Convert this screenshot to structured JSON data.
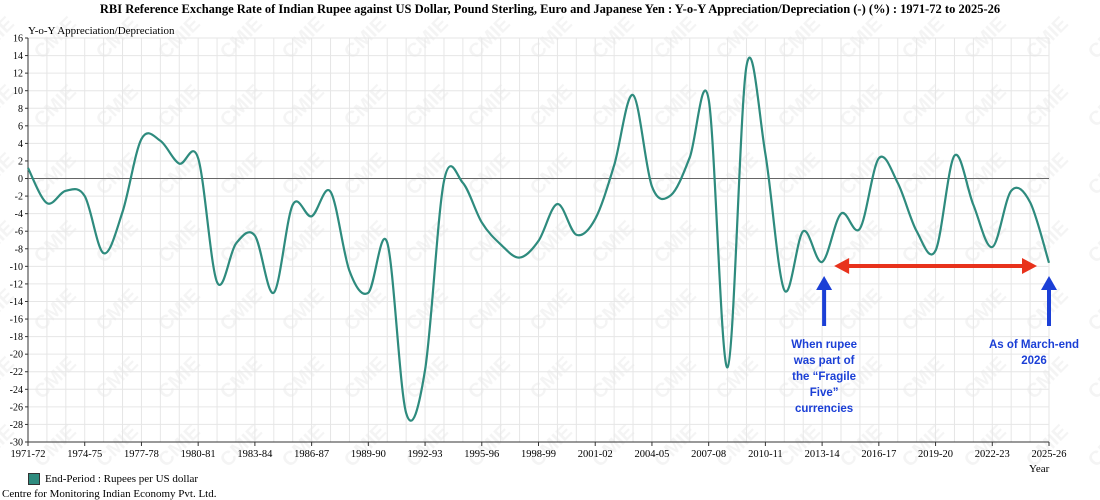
{
  "title": "RBI Reference Exchange Rate of Indian Rupee against US Dollar, Pound Sterling, Euro and Japanese Yen : Y-o-Y Appreciation/Depreciation (-) (%) : 1971-72 to 2025-26",
  "footer": "Centre for Monitoring Indian Economy Pvt. Ltd.",
  "watermark": "CMIE",
  "colors": {
    "series": "#2e8b7e",
    "annotation": "#1b3fd6",
    "range_arrow": "#e8321c",
    "zero_line": "#666666",
    "grid": "#e6e6e6"
  },
  "annotations": [
    {
      "id": "fragile-five",
      "text": "When rupee\nwas part of\nthe “Fragile\nFive”\ncurrencies",
      "category": "2013-14"
    },
    {
      "id": "march-end",
      "text": "As of March-end\n2026",
      "category": "2025-26"
    }
  ],
  "chart_data": {
    "type": "line",
    "title": "RBI Reference Exchange Rate of Indian Rupee against US Dollar, Pound Sterling, Euro and Japanese Yen : Y-o-Y Appreciation/Depreciation (-) (%) : 1971-72 to 2025-26",
    "xlabel": "Year",
    "ylabel": "Y-o-Y Appreciation/Depreciation",
    "ylim": [
      -30,
      16
    ],
    "ytick_step": 2,
    "grid": true,
    "legend_position": "bottom-left",
    "x_tick_labels": [
      "1971-72",
      "1974-75",
      "1977-78",
      "1980-81",
      "1983-84",
      "1986-87",
      "1989-90",
      "1992-93",
      "1995-96",
      "1998-99",
      "2001-02",
      "2004-05",
      "2007-08",
      "2010-11",
      "2013-14",
      "2016-17",
      "2019-20",
      "2022-23",
      "2025-26"
    ],
    "categories": [
      "1971-72",
      "1972-73",
      "1973-74",
      "1974-75",
      "1975-76",
      "1976-77",
      "1977-78",
      "1978-79",
      "1979-80",
      "1980-81",
      "1981-82",
      "1982-83",
      "1983-84",
      "1984-85",
      "1985-86",
      "1986-87",
      "1987-88",
      "1988-89",
      "1989-90",
      "1990-91",
      "1991-92",
      "1992-93",
      "1993-94",
      "1994-95",
      "1995-96",
      "1996-97",
      "1997-98",
      "1998-99",
      "1999-00",
      "2000-01",
      "2001-02",
      "2002-03",
      "2003-04",
      "2004-05",
      "2005-06",
      "2006-07",
      "2007-08",
      "2008-09",
      "2009-10",
      "2010-11",
      "2011-12",
      "2012-13",
      "2013-14",
      "2014-15",
      "2015-16",
      "2016-17",
      "2017-18",
      "2018-19",
      "2019-20",
      "2020-21",
      "2021-22",
      "2022-23",
      "2023-24",
      "2024-25",
      "2025-26"
    ],
    "series": [
      {
        "name": "End-Period : Rupees per US dollar",
        "values": [
          1.2,
          -2.8,
          -1.4,
          -2.0,
          -8.5,
          -3.8,
          4.5,
          4.3,
          1.7,
          2.3,
          -11.8,
          -7.4,
          -6.5,
          -13.0,
          -3.0,
          -4.3,
          -1.5,
          -10.5,
          -13.0,
          -7.3,
          -26.7,
          -21.8,
          -0.3,
          -0.5,
          -5.0,
          -7.5,
          -9.0,
          -7.1,
          -2.9,
          -6.4,
          -4.6,
          1.5,
          9.5,
          -0.9,
          -1.9,
          2.4,
          9.0,
          -21.5,
          12.8,
          2.8,
          -12.7,
          -6.0,
          -9.5,
          -4.0,
          -5.7,
          2.3,
          -0.5,
          -6.0,
          -8.2,
          2.6,
          -3.0,
          -7.8,
          -1.4,
          -2.7,
          -9.6
        ]
      }
    ]
  }
}
